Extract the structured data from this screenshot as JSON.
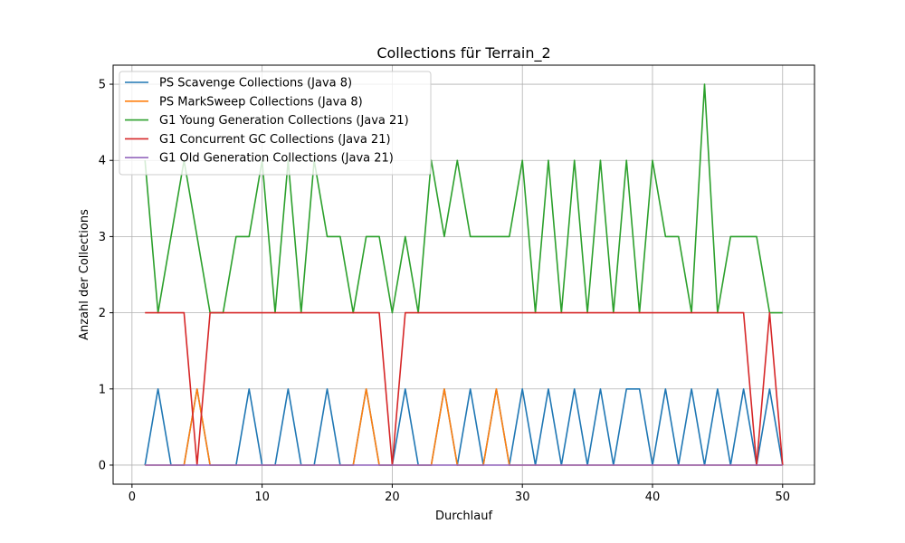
{
  "chart_data": {
    "type": "line",
    "title": "Collections für Terrain_2",
    "xlabel": "Durchlauf",
    "ylabel": "Anzahl der Collections",
    "xlim": [
      -1.45,
      52.45
    ],
    "ylim": [
      -0.25,
      5.25
    ],
    "xticks": [
      0,
      10,
      20,
      30,
      40,
      50
    ],
    "yticks": [
      0,
      1,
      2,
      3,
      4,
      5
    ],
    "grid": true,
    "legend_position": "top-left",
    "x": [
      1,
      2,
      3,
      4,
      5,
      6,
      7,
      8,
      9,
      10,
      11,
      12,
      13,
      14,
      15,
      16,
      17,
      18,
      19,
      20,
      21,
      22,
      23,
      24,
      25,
      26,
      27,
      28,
      29,
      30,
      31,
      32,
      33,
      34,
      35,
      36,
      37,
      38,
      39,
      40,
      41,
      42,
      43,
      44,
      45,
      46,
      47,
      48,
      49,
      50
    ],
    "series": [
      {
        "name": "PS Scavenge Collections (Java 8)",
        "color": "#1f77b4",
        "values": [
          0,
          1,
          0,
          0,
          1,
          0,
          0,
          0,
          1,
          0,
          0,
          1,
          0,
          0,
          1,
          0,
          0,
          1,
          0,
          0,
          1,
          0,
          0,
          1,
          0,
          1,
          0,
          1,
          0,
          1,
          0,
          1,
          0,
          1,
          0,
          1,
          0,
          1,
          1,
          0,
          1,
          0,
          1,
          0,
          1,
          0,
          1,
          0,
          1,
          0
        ]
      },
      {
        "name": "PS MarkSweep Collections (Java 8)",
        "color": "#ff7f0e",
        "values": [
          0,
          0,
          0,
          0,
          1,
          0,
          0,
          0,
          0,
          0,
          0,
          0,
          0,
          0,
          0,
          0,
          0,
          1,
          0,
          0,
          0,
          0,
          0,
          1,
          0,
          0,
          0,
          1,
          0,
          0,
          0,
          0,
          0,
          0,
          0,
          0,
          0,
          0,
          0,
          0,
          0,
          0,
          0,
          0,
          0,
          0,
          0,
          0,
          0,
          0
        ]
      },
      {
        "name": "G1 Young Generation Collections (Java 21)",
        "color": "#2ca02c",
        "values": [
          4,
          2,
          3,
          4,
          3,
          2,
          2,
          3,
          3,
          4,
          2,
          4,
          2,
          4,
          3,
          3,
          2,
          3,
          3,
          2,
          3,
          2,
          4,
          3,
          4,
          3,
          3,
          3,
          3,
          4,
          2,
          4,
          2,
          4,
          2,
          4,
          2,
          4,
          2,
          4,
          3,
          3,
          2,
          5,
          2,
          3,
          3,
          3,
          2,
          2
        ]
      },
      {
        "name": "G1 Concurrent GC Collections (Java 21)",
        "color": "#d62728",
        "values": [
          2,
          2,
          2,
          2,
          0,
          2,
          2,
          2,
          2,
          2,
          2,
          2,
          2,
          2,
          2,
          2,
          2,
          2,
          2,
          0,
          2,
          2,
          2,
          2,
          2,
          2,
          2,
          2,
          2,
          2,
          2,
          2,
          2,
          2,
          2,
          2,
          2,
          2,
          2,
          2,
          2,
          2,
          2,
          2,
          2,
          2,
          2,
          0,
          2,
          0
        ]
      },
      {
        "name": "G1 Old Generation Collections (Java 21)",
        "color": "#9467bd",
        "values": [
          0,
          0,
          0,
          0,
          0,
          0,
          0,
          0,
          0,
          0,
          0,
          0,
          0,
          0,
          0,
          0,
          0,
          0,
          0,
          0,
          0,
          0,
          0,
          0,
          0,
          0,
          0,
          0,
          0,
          0,
          0,
          0,
          0,
          0,
          0,
          0,
          0,
          0,
          0,
          0,
          0,
          0,
          0,
          0,
          0,
          0,
          0,
          0,
          0,
          0
        ]
      }
    ]
  }
}
